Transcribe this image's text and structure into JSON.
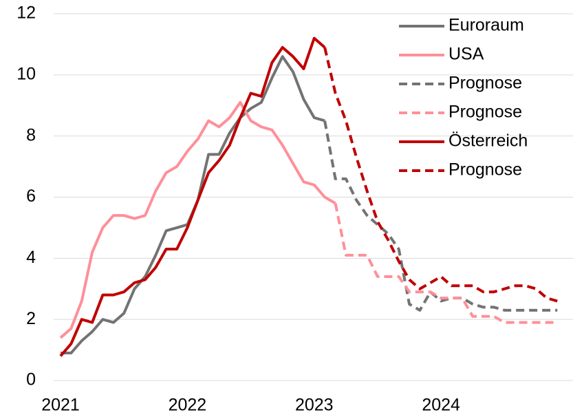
{
  "chart_data": {
    "type": "line",
    "x": [
      2021,
      2021.083,
      2021.167,
      2021.25,
      2021.333,
      2021.417,
      2021.5,
      2021.583,
      2021.667,
      2021.75,
      2021.833,
      2021.917,
      2022,
      2022.083,
      2022.167,
      2022.25,
      2022.333,
      2022.417,
      2022.5,
      2022.583,
      2022.667,
      2022.75,
      2022.833,
      2022.917,
      2023,
      2023.083,
      2023.167,
      2023.25,
      2023.333,
      2023.417,
      2023.5,
      2023.583,
      2023.667,
      2023.75,
      2023.833,
      2023.917,
      2024,
      2024.083,
      2024.167,
      2024.25,
      2024.333,
      2024.417,
      2024.5,
      2024.583,
      2024.667,
      2024.75,
      2024.833,
      2024.917
    ],
    "series": [
      {
        "name": "Euroraum",
        "color": "#737373",
        "dash": false,
        "values": [
          0.9,
          0.9,
          1.3,
          1.6,
          2.0,
          1.9,
          2.2,
          3.0,
          3.4,
          4.1,
          4.9,
          5.0,
          5.1,
          5.9,
          7.4,
          7.4,
          8.1,
          8.6,
          8.9,
          9.1,
          9.9,
          10.6,
          10.1,
          9.2,
          8.6,
          8.5,
          null,
          null,
          null,
          null,
          null,
          null,
          null,
          null,
          null,
          null,
          null,
          null,
          null,
          null,
          null,
          null,
          null,
          null,
          null,
          null,
          null,
          null
        ]
      },
      {
        "name": "USA",
        "color": "#ff8f99",
        "dash": false,
        "values": [
          1.4,
          1.7,
          2.6,
          4.2,
          5.0,
          5.4,
          5.4,
          5.3,
          5.4,
          6.2,
          6.8,
          7.0,
          7.5,
          7.9,
          8.5,
          8.3,
          8.6,
          9.1,
          8.5,
          8.3,
          8.2,
          7.7,
          7.1,
          6.5,
          6.4,
          6.0,
          5.8,
          null,
          null,
          null,
          null,
          null,
          null,
          null,
          null,
          null,
          null,
          null,
          null,
          null,
          null,
          null,
          null,
          null,
          null,
          null,
          null,
          null
        ]
      },
      {
        "name": "Prognose",
        "color": "#737373",
        "dash": true,
        "values": [
          null,
          null,
          null,
          null,
          null,
          null,
          null,
          null,
          null,
          null,
          null,
          null,
          null,
          null,
          null,
          null,
          null,
          null,
          null,
          null,
          null,
          null,
          null,
          null,
          null,
          8.5,
          6.6,
          6.6,
          5.9,
          5.4,
          5.1,
          4.8,
          4.3,
          2.5,
          2.3,
          2.9,
          2.6,
          2.7,
          2.7,
          2.5,
          2.4,
          2.4,
          2.3,
          2.3,
          2.3,
          2.3,
          2.3,
          2.3
        ]
      },
      {
        "name": "Prognose",
        "color": "#ff8f99",
        "dash": true,
        "values": [
          null,
          null,
          null,
          null,
          null,
          null,
          null,
          null,
          null,
          null,
          null,
          null,
          null,
          null,
          null,
          null,
          null,
          null,
          null,
          null,
          null,
          null,
          null,
          null,
          null,
          null,
          5.8,
          4.1,
          4.1,
          4.1,
          3.4,
          3.4,
          3.4,
          2.9,
          2.9,
          2.9,
          2.7,
          2.7,
          2.7,
          2.1,
          2.1,
          2.1,
          1.9,
          1.9,
          1.9,
          1.9,
          1.9,
          1.9
        ]
      },
      {
        "name": "Österreich",
        "color": "#c00000",
        "dash": false,
        "values": [
          0.8,
          1.2,
          2.0,
          1.9,
          2.8,
          2.8,
          2.9,
          3.2,
          3.3,
          3.7,
          4.3,
          4.3,
          5.0,
          5.9,
          6.8,
          7.2,
          7.7,
          8.6,
          9.4,
          9.3,
          10.4,
          10.9,
          10.6,
          10.2,
          11.2,
          10.9,
          null,
          null,
          null,
          null,
          null,
          null,
          null,
          null,
          null,
          null,
          null,
          null,
          null,
          null,
          null,
          null,
          null,
          null,
          null,
          null,
          null,
          null
        ]
      },
      {
        "name": "Prognose",
        "color": "#c00000",
        "dash": true,
        "values": [
          null,
          null,
          null,
          null,
          null,
          null,
          null,
          null,
          null,
          null,
          null,
          null,
          null,
          null,
          null,
          null,
          null,
          null,
          null,
          null,
          null,
          null,
          null,
          null,
          null,
          10.9,
          9.4,
          8.5,
          7.3,
          6.2,
          5.2,
          4.6,
          3.9,
          3.3,
          3.0,
          3.2,
          3.4,
          3.1,
          3.1,
          3.1,
          2.9,
          2.9,
          3.0,
          3.1,
          3.1,
          3.0,
          2.7,
          2.6
        ]
      }
    ],
    "xlim": [
      2021,
      2024.97
    ],
    "xticks": [
      2021,
      2022,
      2023,
      2024
    ],
    "ylim": [
      0,
      12
    ],
    "yticks": [
      0,
      2,
      4,
      6,
      8,
      10,
      12
    ],
    "grid": true,
    "legend": "upper right"
  }
}
